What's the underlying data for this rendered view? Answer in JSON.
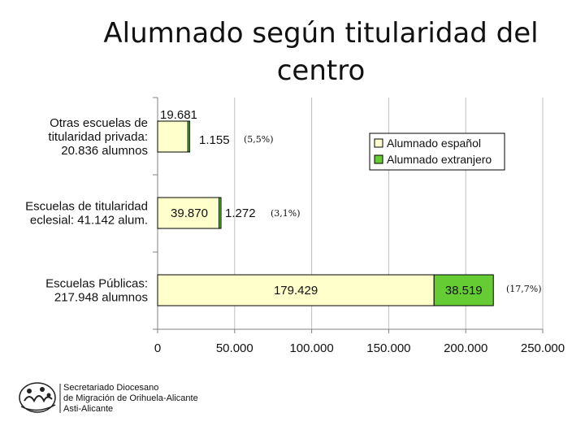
{
  "title": "Alumnado según titularidad del centro",
  "logo": {
    "line1": "Secretariado Diocesano",
    "line2": "de Migración de Orihuela-Alicante",
    "line3": "Asti-Alicante"
  },
  "colors": {
    "espanol": "#ffffcc",
    "extranjero": "#66cc33",
    "grid": "#bfbfbf"
  },
  "chart_data": {
    "type": "bar",
    "orientation": "horizontal",
    "stacked": true,
    "categories": [
      [
        "Otras escuelas de",
        "titularidad privada:",
        "20.836 alumnos"
      ],
      [
        "Escuelas de titularidad",
        "eclesial: 41.142 alum."
      ],
      [
        "Escuelas Públicas:",
        "217.948 alumnos"
      ]
    ],
    "series": [
      {
        "name": "Alumnado español",
        "values": [
          19681,
          39870,
          179429
        ],
        "labels": [
          "19.681",
          "39.870",
          "179.429"
        ]
      },
      {
        "name": "Alumnado extranjero",
        "values": [
          1155,
          1272,
          38519
        ],
        "labels": [
          "1.155",
          "1.272",
          "38.519"
        ]
      }
    ],
    "percent_labels": [
      "(5,5%)",
      "(3,1%)",
      "(17,7%)"
    ],
    "xlim": [
      0,
      250000
    ],
    "xticks": [
      0,
      50000,
      100000,
      150000,
      200000,
      250000
    ],
    "xtick_labels": [
      "0",
      "50.000",
      "100.000",
      "150.000",
      "200.000",
      "250.000"
    ],
    "grid": "vertical",
    "legend": "top-right"
  }
}
